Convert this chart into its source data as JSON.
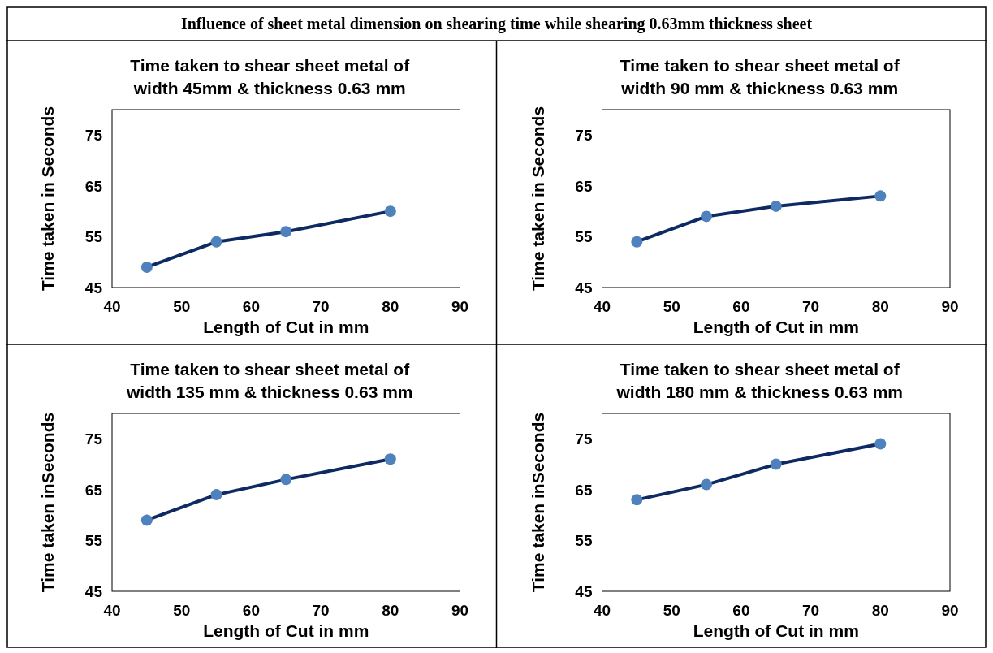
{
  "chart_data": [
    {
      "type": "other",
      "title": "Influence of sheet metal dimension on shearing time while shearing 0.63mm thickness sheet"
    },
    {
      "type": "line",
      "title": "Time taken to shear sheet metal of width 45mm & thickness 0.63 mm",
      "xlabel": "Length of Cut in mm",
      "ylabel": "Time taken in Seconds",
      "x": [
        45,
        55,
        65,
        80
      ],
      "series": [
        {
          "color": "#0e2a62",
          "values": [
            49,
            54,
            56,
            60
          ]
        }
      ],
      "xlim": [
        40,
        90
      ],
      "xticks": [
        40,
        50,
        60,
        70,
        80,
        90
      ],
      "ylim": [
        45,
        80
      ],
      "yticks": [
        45,
        55,
        65,
        75
      ],
      "marker": "circle",
      "grid": false
    },
    {
      "type": "line",
      "title": "Time taken to shear sheet metal of width 90 mm & thickness 0.63 mm",
      "xlabel": "Length of Cut in mm",
      "ylabel": "Time taken in Seconds",
      "x": [
        45,
        55,
        65,
        80
      ],
      "series": [
        {
          "color": "#0e2a62",
          "values": [
            54,
            59,
            61,
            63
          ]
        }
      ],
      "xlim": [
        40,
        90
      ],
      "xticks": [
        40,
        50,
        60,
        70,
        80,
        90
      ],
      "ylim": [
        45,
        80
      ],
      "yticks": [
        45,
        55,
        65,
        75
      ],
      "marker": "circle",
      "grid": false
    },
    {
      "type": "line",
      "title": "Time taken to shear sheet metal of width 135 mm & thickness 0.63 mm",
      "xlabel": "Length of Cut in mm",
      "ylabel": "Time taken inSeconds",
      "x": [
        45,
        55,
        65,
        80
      ],
      "series": [
        {
          "color": "#0e2a62",
          "values": [
            59,
            64,
            67,
            71
          ]
        }
      ],
      "xlim": [
        40,
        90
      ],
      "xticks": [
        40,
        50,
        60,
        70,
        80,
        90
      ],
      "ylim": [
        45,
        80
      ],
      "yticks": [
        45,
        55,
        65,
        75
      ],
      "marker": "circle",
      "grid": false
    },
    {
      "type": "line",
      "title": "Time taken to shear sheet metal of width 180 mm & thickness 0.63 mm",
      "xlabel": "Length of Cut in mm",
      "ylabel": "Time taken inSeconds",
      "x": [
        45,
        55,
        65,
        80
      ],
      "series": [
        {
          "color": "#0e2a62",
          "values": [
            63,
            66,
            70,
            74
          ]
        }
      ],
      "xlim": [
        40,
        90
      ],
      "xticks": [
        40,
        50,
        60,
        70,
        80,
        90
      ],
      "ylim": [
        45,
        80
      ],
      "yticks": [
        45,
        55,
        65,
        75
      ],
      "marker": "circle",
      "grid": false
    }
  ]
}
